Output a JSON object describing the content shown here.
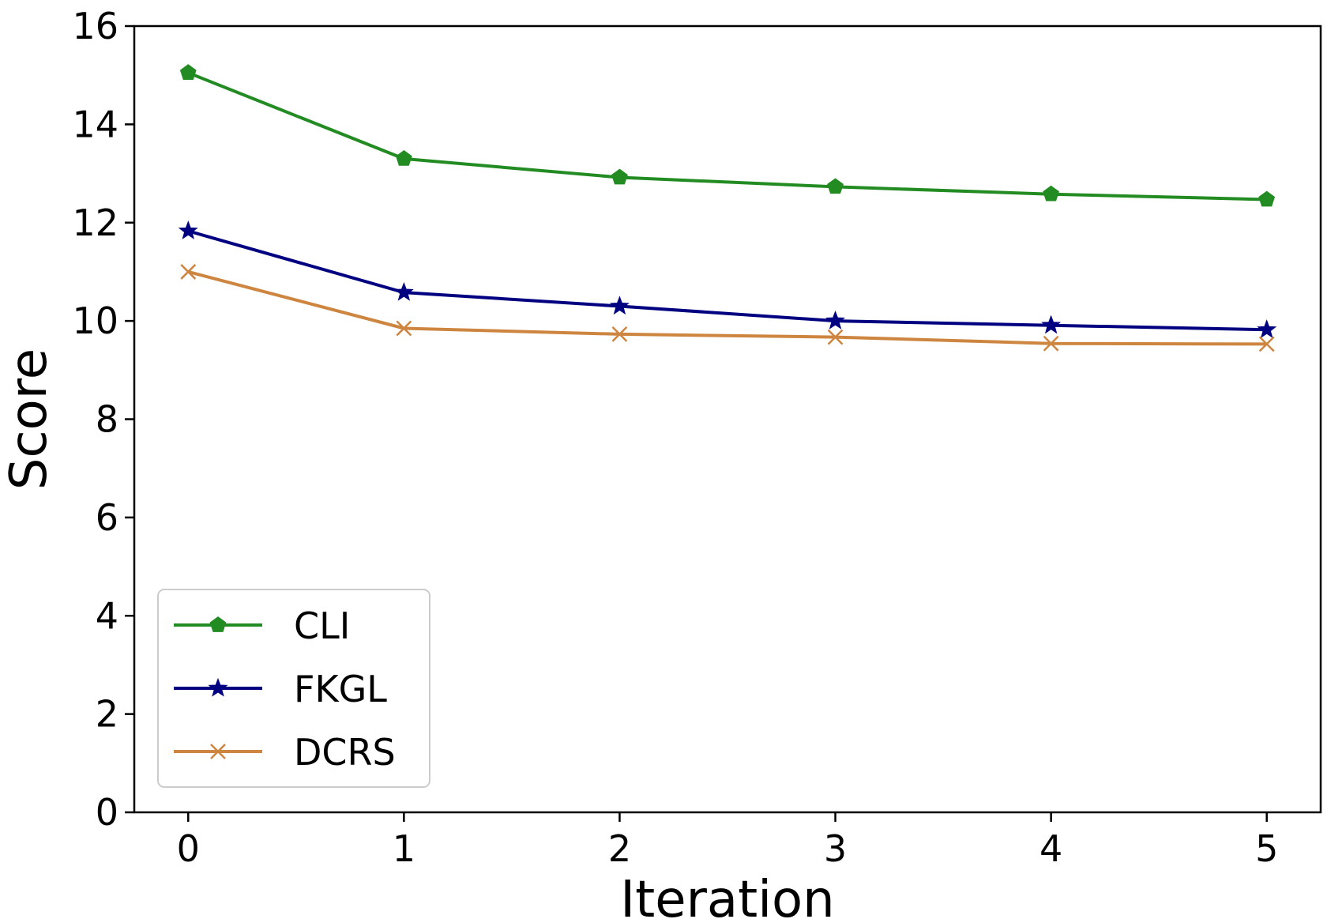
{
  "chart_data": {
    "type": "line",
    "title": "",
    "xlabel": "Iteration",
    "ylabel": "Score",
    "x": [
      0,
      1,
      2,
      3,
      4,
      5
    ],
    "xlim": [
      -0.25,
      5.25
    ],
    "ylim": [
      0,
      16
    ],
    "xticks": [
      0,
      1,
      2,
      3,
      4,
      5
    ],
    "yticks": [
      0,
      2,
      4,
      6,
      8,
      10,
      12,
      14,
      16
    ],
    "grid": false,
    "legend_position": "lower-left",
    "series": [
      {
        "name": "CLI",
        "color": "#228b22",
        "marker": "pentagon",
        "values": [
          15.05,
          13.3,
          12.92,
          12.73,
          12.58,
          12.47
        ]
      },
      {
        "name": "FKGL",
        "color": "#000080",
        "marker": "star",
        "values": [
          11.83,
          10.58,
          10.3,
          10.0,
          9.91,
          9.82
        ]
      },
      {
        "name": "DCRS",
        "color": "#cd853f",
        "marker": "x",
        "values": [
          11.0,
          9.85,
          9.73,
          9.67,
          9.54,
          9.53
        ]
      }
    ]
  }
}
